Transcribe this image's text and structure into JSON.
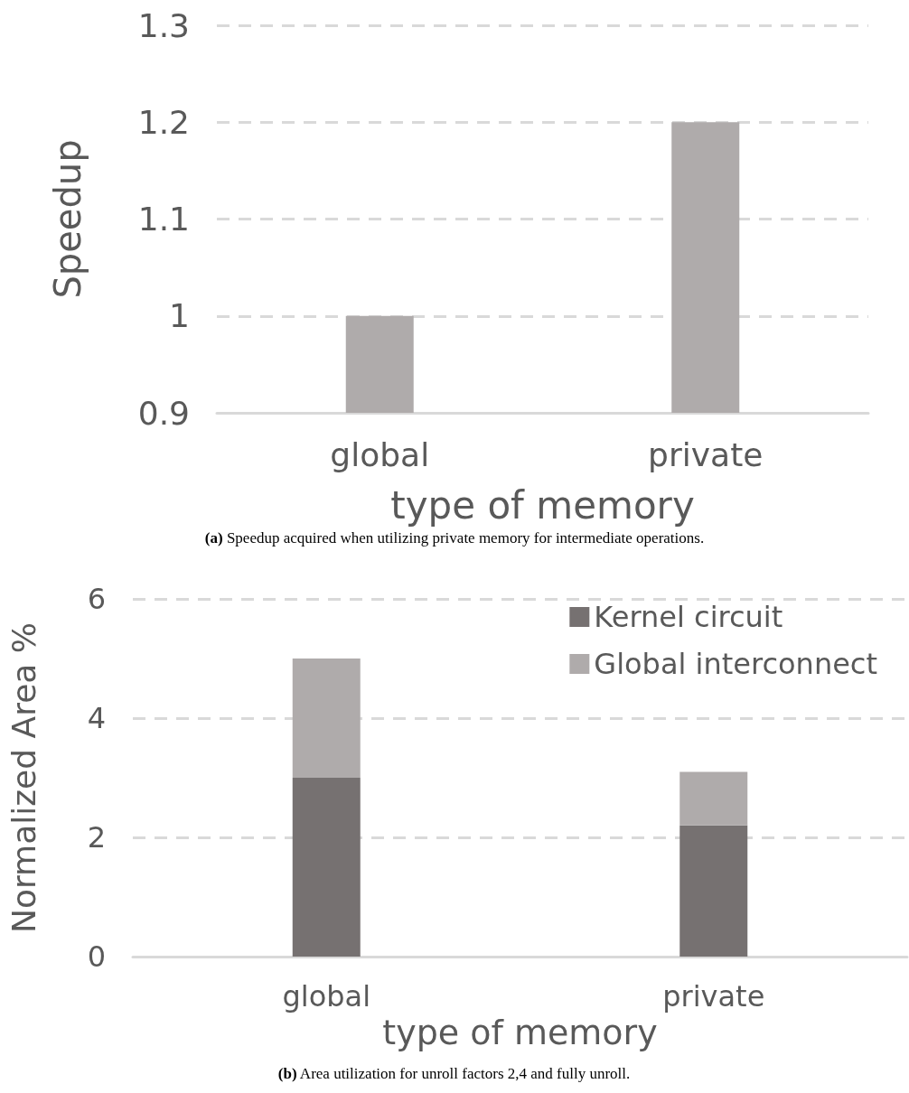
{
  "chart_data": [
    {
      "type": "bar",
      "categories": [
        "global",
        "private"
      ],
      "xlabel": "type of memory",
      "ylabel": "Speedup",
      "ylim": [
        0.9,
        1.3
      ],
      "yticks": [
        0.9,
        1,
        1.1,
        1.2,
        1.3
      ],
      "grid": "y",
      "legend": false,
      "series": [
        {
          "color": "#afabab",
          "values": [
            1.0,
            1.2
          ]
        }
      ],
      "annotations": [
        "(a) Speedup acquired when utilizing private memory for intermediate operations."
      ]
    },
    {
      "type": "bar",
      "stacked": true,
      "categories": [
        "global",
        "private"
      ],
      "xlabel": "type of memory",
      "ylabel": "Normalized Area %",
      "ylim": [
        0,
        6
      ],
      "yticks": [
        0,
        2,
        4,
        6
      ],
      "grid": "y",
      "legend": "top right",
      "series": [
        {
          "name": "Kernel circuit",
          "color": "#767171",
          "values": [
            3.0,
            2.2
          ]
        },
        {
          "name": "Global interconnect",
          "color": "#afabab",
          "values": [
            2.0,
            0.9
          ]
        }
      ],
      "annotations": [
        "(b) Area utilization for unroll factors 2,4 and fully unroll."
      ]
    }
  ]
}
